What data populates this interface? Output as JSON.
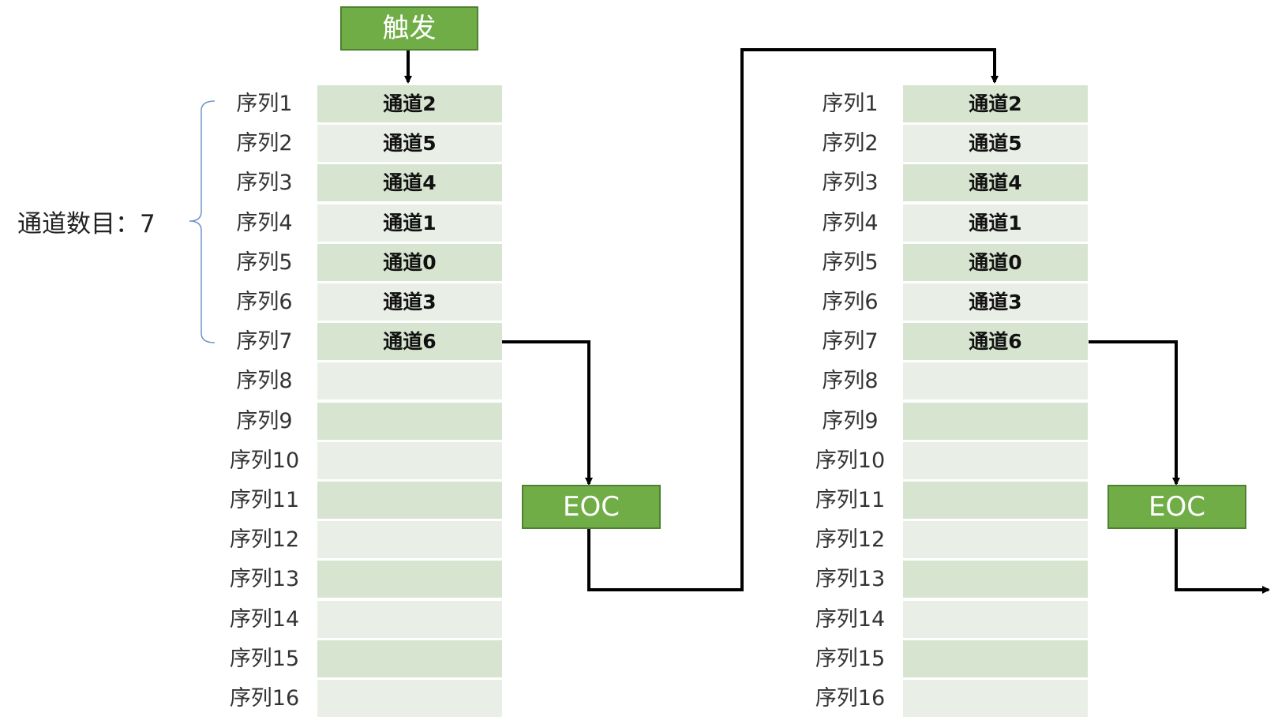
{
  "trigger_label": "触发",
  "eoc_label": "EOC",
  "channel_count_label": "通道数目：7",
  "sequence_labels": [
    "序列1",
    "序列2",
    "序列3",
    "序列4",
    "序列5",
    "序列6",
    "序列7",
    "序列8",
    "序列9",
    "序列10",
    "序列11",
    "序列12",
    "序列13",
    "序列14",
    "序列15",
    "序列16"
  ],
  "channels": [
    "通道2",
    "通道5",
    "通道4",
    "通道1",
    "通道0",
    "通道3",
    "通道6",
    "",
    "",
    "",
    "",
    "",
    "",
    "",
    "",
    ""
  ],
  "colors": {
    "box_fill": "#70ad47",
    "row_dark": "#d7e4d0",
    "row_light": "#e9efe6",
    "brace": "#6f95c9"
  }
}
